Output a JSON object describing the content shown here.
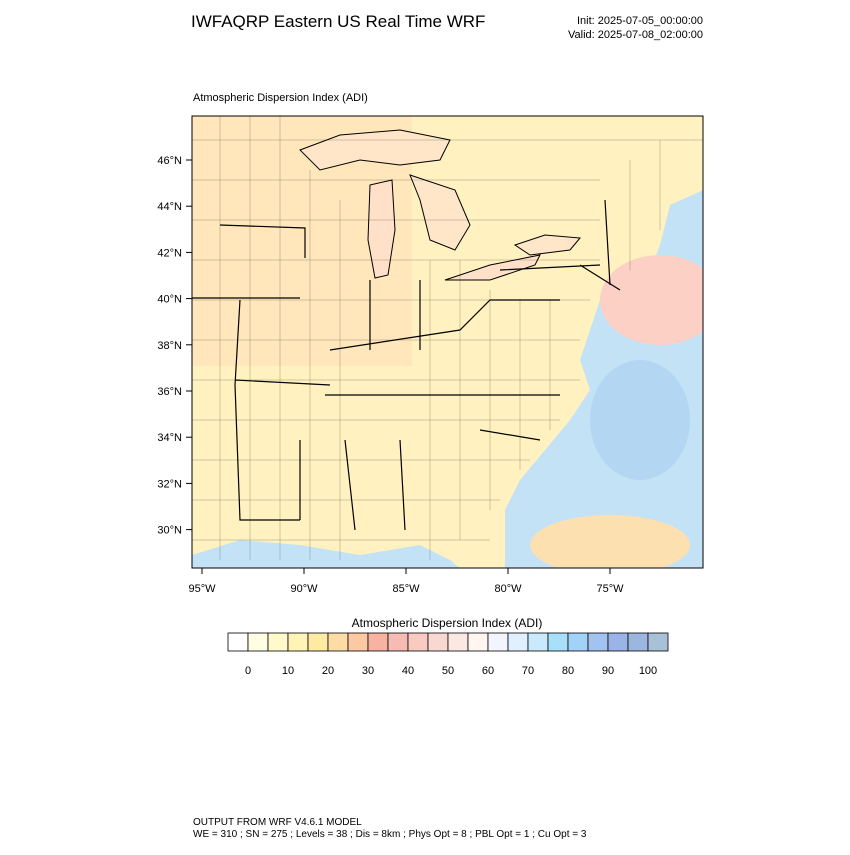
{
  "header": {
    "title": "IWFAQRP Eastern US Real Time WRF",
    "init": "Init: 2025-07-05_00:00:00",
    "valid": "Valid: 2025-07-08_02:00:00"
  },
  "map": {
    "title": "Atmospheric Dispersion Index   (ADI)",
    "lat_ticks": [
      {
        "value": 46,
        "label": "46°N"
      },
      {
        "value": 44,
        "label": "44°N"
      },
      {
        "value": 42,
        "label": "42°N"
      },
      {
        "value": 40,
        "label": "40°N"
      },
      {
        "value": 38,
        "label": "38°N"
      },
      {
        "value": 36,
        "label": "36°N"
      },
      {
        "value": 34,
        "label": "34°N"
      },
      {
        "value": 32,
        "label": "32°N"
      },
      {
        "value": 30,
        "label": "30°N"
      }
    ],
    "lon_ticks": [
      {
        "value": -95,
        "label": "95°W"
      },
      {
        "value": -90,
        "label": "90°W"
      },
      {
        "value": -85,
        "label": "85°W"
      },
      {
        "value": -80,
        "label": "80°W"
      },
      {
        "value": -75,
        "label": "75°W"
      }
    ]
  },
  "colorbar": {
    "title": "Atmospheric Dispersion Index  (ADI)",
    "labels": [
      0,
      10,
      20,
      30,
      40,
      50,
      60,
      70,
      80,
      90,
      100
    ],
    "colors": [
      "#ffffff",
      "#fffde2",
      "#fff9cc",
      "#fff3b6",
      "#ffeaa4",
      "#ffdca6",
      "#fcc9a2",
      "#f8b2a2",
      "#f6bcb4",
      "#f8cac2",
      "#fad8d2",
      "#fce8e2",
      "#fff6f2",
      "#f2f4ff",
      "#e0f0ff",
      "#c8eafc",
      "#a8e0fa",
      "#a2d2f8",
      "#a2c2f0",
      "#9ab4e8",
      "#9cb6e0",
      "#a8c0d8"
    ]
  },
  "footer": {
    "line1": "OUTPUT FROM WRF V4.6.1 MODEL",
    "line2": "WE = 310 ; SN = 275 ; Levels = 38 ; Dis = 8km ; Phys Opt = 8 ; PBL Opt = 1 ; Cu Opt = 3"
  }
}
